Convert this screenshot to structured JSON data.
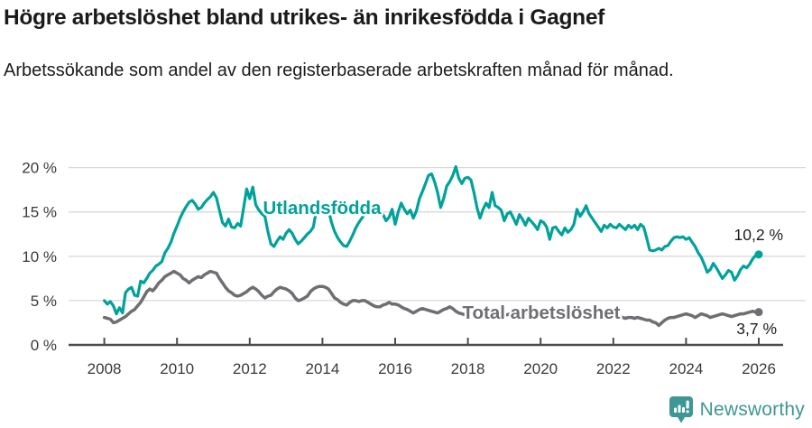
{
  "header": {
    "title": "Högre arbetslöshet bland utrikes- än inrikesfödda i Gagnef",
    "subtitle": "Arbetssökande som andel av den registerbaserade arbetskraften månad för månad."
  },
  "chart_data": {
    "type": "line",
    "x_start_year": 2008,
    "x_step_months": 1,
    "x_tick_labels": [
      "2008",
      "2010",
      "2012",
      "2014",
      "2016",
      "2018",
      "2020",
      "2022",
      "2024",
      "2026"
    ],
    "x_tick_years": [
      2008,
      2010,
      2012,
      2014,
      2016,
      2018,
      2020,
      2022,
      2024,
      2026
    ],
    "y_ticks": [
      0,
      5,
      10,
      15,
      20
    ],
    "y_tick_suffix": " %",
    "ylim": [
      0,
      21
    ],
    "grid": "horizontal-only",
    "legend_position": "inline-labels",
    "colors": {
      "grid": "#d9d9d9",
      "axis": "#4c4c4c",
      "tick_text": "#3a3a3a",
      "end_label_text": "#1d1d1d"
    },
    "series": [
      {
        "name": "Utlandsfödda",
        "color": "#00a29b",
        "end_label": "10,2 %",
        "end_value": 10.2,
        "values": [
          5.0,
          4.6,
          4.9,
          4.4,
          3.5,
          4.2,
          3.6,
          5.9,
          6.3,
          6.5,
          5.6,
          5.5,
          7.2,
          7.0,
          7.5,
          8.1,
          8.4,
          8.9,
          9.1,
          9.4,
          10.4,
          10.9,
          11.6,
          12.6,
          13.4,
          14.3,
          15.0,
          15.6,
          16.1,
          16.3,
          15.9,
          15.3,
          15.5,
          16.0,
          16.4,
          16.7,
          17.2,
          16.6,
          15.2,
          13.8,
          13.4,
          14.2,
          13.3,
          13.2,
          13.7,
          13.4,
          15.5,
          17.6,
          16.5,
          17.8,
          15.8,
          15.2,
          14.8,
          14.5,
          12.8,
          11.4,
          11.1,
          11.7,
          12.2,
          11.9,
          12.6,
          13.0,
          12.6,
          11.9,
          11.4,
          11.7,
          12.1,
          12.5,
          12.8,
          13.3,
          15.2,
          15.5,
          15.3,
          15.5,
          15.2,
          13.8,
          12.8,
          12.1,
          11.6,
          11.2,
          11.1,
          11.7,
          12.4,
          13.2,
          13.8,
          14.3,
          14.8,
          15.2,
          15.6,
          15.8,
          15.5,
          15.2,
          14.7,
          14.0,
          14.4,
          15.3,
          13.6,
          15.0,
          16.0,
          15.3,
          14.8,
          15.2,
          14.3,
          15.1,
          16.5,
          17.3,
          18.2,
          19.1,
          19.3,
          18.4,
          17.2,
          15.5,
          16.5,
          17.9,
          18.4,
          19.1,
          20.1,
          18.8,
          18.2,
          18.8,
          18.9,
          18.6,
          17.2,
          15.5,
          14.3,
          15.3,
          16.0,
          15.5,
          17.2,
          15.7,
          15.5,
          15.2,
          14.0,
          14.8,
          15.0,
          14.3,
          13.6,
          14.7,
          14.2,
          13.5,
          14.3,
          13.9,
          13.5,
          13.0,
          14.0,
          13.8,
          13.3,
          11.9,
          13.2,
          13.3,
          12.8,
          12.4,
          13.2,
          12.7,
          13.0,
          13.6,
          15.3,
          14.5,
          15.0,
          15.7,
          14.8,
          14.3,
          13.8,
          13.3,
          12.8,
          13.5,
          13.2,
          13.6,
          13.3,
          13.2,
          13.6,
          13.3,
          13.0,
          13.5,
          13.2,
          13.5,
          13.0,
          13.6,
          13.3,
          12.1,
          10.7,
          10.6,
          10.7,
          10.9,
          10.7,
          11.1,
          11.2,
          11.7,
          12.1,
          12.2,
          12.1,
          12.2,
          11.9,
          12.1,
          11.6,
          11.1,
          10.4,
          9.9,
          9.1,
          8.2,
          8.5,
          9.2,
          8.7,
          8.1,
          7.5,
          7.9,
          8.4,
          8.2,
          7.3,
          7.8,
          8.5,
          8.9,
          8.7,
          9.1,
          9.7,
          10.1,
          10.2
        ]
      },
      {
        "name": "Total arbetslöshet",
        "color": "#6f6e73",
        "end_label": "3,7 %",
        "end_value": 3.7,
        "values": [
          3.1,
          3.0,
          2.9,
          2.5,
          2.6,
          2.8,
          3.0,
          3.2,
          3.5,
          3.8,
          4.0,
          4.4,
          4.8,
          5.4,
          6.0,
          6.3,
          6.1,
          6.5,
          7.0,
          7.3,
          7.7,
          7.9,
          8.1,
          8.3,
          8.1,
          7.9,
          7.5,
          7.3,
          7.0,
          7.3,
          7.5,
          7.7,
          7.6,
          7.9,
          8.1,
          8.3,
          8.2,
          8.1,
          7.5,
          7.0,
          6.5,
          6.1,
          5.9,
          5.6,
          5.5,
          5.6,
          5.8,
          6.0,
          6.3,
          6.5,
          6.3,
          6.0,
          5.6,
          5.3,
          5.5,
          5.6,
          6.0,
          6.3,
          6.5,
          6.4,
          6.3,
          6.1,
          5.8,
          5.3,
          5.0,
          5.1,
          5.3,
          5.5,
          6.0,
          6.3,
          6.5,
          6.6,
          6.6,
          6.5,
          6.3,
          5.8,
          5.3,
          5.1,
          4.8,
          4.6,
          4.5,
          4.8,
          5.0,
          5.0,
          4.9,
          5.0,
          5.0,
          4.8,
          4.6,
          4.4,
          4.3,
          4.3,
          4.5,
          4.6,
          4.8,
          4.6,
          4.6,
          4.5,
          4.3,
          4.1,
          4.0,
          3.8,
          3.6,
          3.8,
          4.0,
          4.1,
          4.0,
          3.9,
          3.8,
          3.7,
          3.6,
          3.8,
          4.0,
          4.1,
          4.3,
          4.1,
          3.8,
          3.6,
          3.5,
          3.4,
          3.3,
          3.4,
          3.5,
          3.4,
          3.5,
          3.6,
          3.8,
          3.7,
          3.6,
          3.5,
          3.4,
          3.5,
          3.4,
          3.4,
          3.5,
          3.4,
          3.5,
          3.6,
          3.7,
          3.6,
          3.5,
          3.4,
          3.5,
          3.4,
          3.3,
          3.4,
          3.6,
          3.9,
          4.1,
          4.0,
          3.9,
          3.8,
          3.7,
          3.6,
          3.5,
          3.4,
          3.1,
          3.3,
          3.4,
          3.5,
          3.4,
          3.3,
          3.1,
          3.2,
          3.3,
          3.5,
          3.3,
          3.2,
          3.1,
          3.2,
          3.3,
          3.1,
          3.0,
          3.1,
          3.1,
          3.0,
          3.1,
          3.0,
          2.9,
          2.8,
          2.8,
          2.6,
          2.5,
          2.2,
          2.5,
          2.8,
          3.0,
          3.1,
          3.1,
          3.2,
          3.3,
          3.4,
          3.5,
          3.4,
          3.3,
          3.1,
          3.3,
          3.5,
          3.4,
          3.3,
          3.1,
          3.2,
          3.3,
          3.4,
          3.5,
          3.4,
          3.3,
          3.2,
          3.3,
          3.4,
          3.5,
          3.5,
          3.6,
          3.7,
          3.8,
          3.7,
          3.7
        ]
      }
    ]
  },
  "footer": {
    "brand": "Newsworthy",
    "brand_color": "#3e9795",
    "logo_icon": "newsworthy-bubble-chart-icon"
  }
}
